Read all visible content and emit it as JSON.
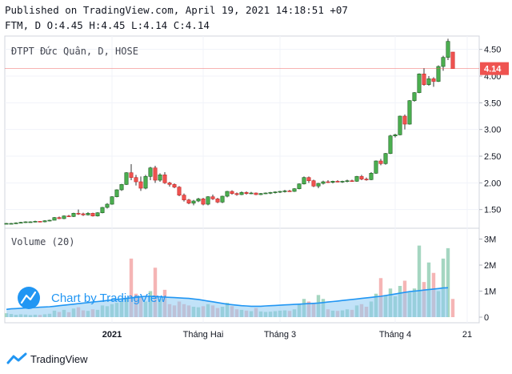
{
  "header": {
    "published": "Published on TradingView.com, April 19, 2021 14:18:51 +07",
    "ohlc": "FTM, D O:4.45 H:4.45 L:4.14 C:4.14"
  },
  "footer": {
    "brand": "TradingView"
  },
  "watermark": "Chart by TradingView",
  "colors": {
    "up": "#26a69a",
    "down": "#ef5350",
    "upFill": "#4caf50",
    "volUp": "#a5d6c1",
    "volDown": "#f5b5b5",
    "ma": "#2196f3",
    "maFill": "#8ecaf2",
    "lastPrice": "#ef5350"
  },
  "chart_data": {
    "type": "candlestick",
    "symbol_label": "ĐTPT Đức Quân, D, HOSE",
    "volume_label": "Volume (20)",
    "last_price": "4.14",
    "price_ticks": [
      "4.50",
      "4.00",
      "3.50",
      "3.00",
      "2.50",
      "2.00",
      "1.50"
    ],
    "price_tick_values": [
      4.5,
      4.0,
      3.5,
      3.0,
      2.5,
      2.0,
      1.5
    ],
    "price_range": [
      1.15,
      4.75
    ],
    "volume_ticks": [
      "3M",
      "2M",
      "1M",
      "0"
    ],
    "volume_tick_values": [
      3000000,
      2000000,
      1000000,
      0
    ],
    "volume_range": [
      0,
      3200000
    ],
    "x_labels": [
      {
        "label": "2021",
        "i": 22,
        "bold": true
      },
      {
        "label": "Tháng Hai",
        "i": 41,
        "bold": false
      },
      {
        "label": "Tháng 3",
        "i": 57,
        "bold": false
      },
      {
        "label": "Tháng 4",
        "i": 81,
        "bold": false
      },
      {
        "label": "21",
        "i": 96,
        "bold": false
      }
    ],
    "candles": [
      [
        1.24,
        1.25,
        1.23,
        1.24,
        150000
      ],
      [
        1.24,
        1.25,
        1.23,
        1.24,
        120000
      ],
      [
        1.24,
        1.26,
        1.23,
        1.25,
        90000
      ],
      [
        1.25,
        1.27,
        1.24,
        1.26,
        110000
      ],
      [
        1.26,
        1.28,
        1.25,
        1.27,
        100000
      ],
      [
        1.27,
        1.28,
        1.26,
        1.27,
        80000
      ],
      [
        1.27,
        1.29,
        1.26,
        1.28,
        95000
      ],
      [
        1.28,
        1.28,
        1.26,
        1.27,
        85000
      ],
      [
        1.27,
        1.3,
        1.26,
        1.29,
        110000
      ],
      [
        1.29,
        1.31,
        1.28,
        1.3,
        130000
      ],
      [
        1.3,
        1.36,
        1.3,
        1.35,
        250000
      ],
      [
        1.35,
        1.37,
        1.32,
        1.33,
        200000
      ],
      [
        1.33,
        1.39,
        1.32,
        1.38,
        280000
      ],
      [
        1.38,
        1.4,
        1.36,
        1.37,
        190000
      ],
      [
        1.37,
        1.44,
        1.36,
        1.43,
        330000
      ],
      [
        1.43,
        1.5,
        1.4,
        1.42,
        380000
      ],
      [
        1.42,
        1.44,
        1.38,
        1.4,
        260000
      ],
      [
        1.4,
        1.45,
        1.39,
        1.43,
        240000
      ],
      [
        1.43,
        1.44,
        1.37,
        1.38,
        300000
      ],
      [
        1.38,
        1.45,
        1.37,
        1.44,
        280000
      ],
      [
        1.44,
        1.55,
        1.43,
        1.54,
        450000
      ],
      [
        1.54,
        1.62,
        1.52,
        1.6,
        420000
      ],
      [
        1.6,
        1.75,
        1.59,
        1.74,
        500000
      ],
      [
        1.74,
        1.88,
        1.73,
        1.87,
        550000
      ],
      [
        1.87,
        1.98,
        1.85,
        1.97,
        600000
      ],
      [
        1.97,
        2.2,
        1.96,
        2.19,
        700000
      ],
      [
        2.19,
        2.35,
        2.05,
        2.1,
        2250000
      ],
      [
        2.1,
        2.15,
        1.95,
        2.02,
        900000
      ],
      [
        2.02,
        2.12,
        1.85,
        1.9,
        800000
      ],
      [
        1.9,
        2.15,
        1.88,
        2.12,
        600000
      ],
      [
        2.12,
        2.3,
        2.05,
        2.28,
        1000000
      ],
      [
        2.28,
        2.32,
        2.0,
        2.05,
        1900000
      ],
      [
        2.05,
        2.18,
        2.02,
        2.15,
        700000
      ],
      [
        2.15,
        2.2,
        1.98,
        2.0,
        1050000
      ],
      [
        2.0,
        2.02,
        1.93,
        1.97,
        500000
      ],
      [
        1.97,
        1.99,
        1.9,
        1.92,
        450000
      ],
      [
        1.92,
        1.94,
        1.75,
        1.77,
        600000
      ],
      [
        1.77,
        1.8,
        1.65,
        1.68,
        500000
      ],
      [
        1.68,
        1.7,
        1.6,
        1.62,
        450000
      ],
      [
        1.62,
        1.68,
        1.58,
        1.66,
        400000
      ],
      [
        1.66,
        1.72,
        1.64,
        1.7,
        380000
      ],
      [
        1.7,
        1.72,
        1.58,
        1.6,
        420000
      ],
      [
        1.6,
        1.75,
        1.58,
        1.74,
        500000
      ],
      [
        1.74,
        1.78,
        1.68,
        1.7,
        450000
      ],
      [
        1.7,
        1.72,
        1.62,
        1.64,
        350000
      ],
      [
        1.64,
        1.76,
        1.62,
        1.75,
        400000
      ],
      [
        1.75,
        1.85,
        1.73,
        1.84,
        550000
      ],
      [
        1.84,
        1.86,
        1.78,
        1.8,
        420000
      ],
      [
        1.8,
        1.82,
        1.76,
        1.78,
        300000
      ],
      [
        1.78,
        1.84,
        1.77,
        1.82,
        280000
      ],
      [
        1.82,
        1.84,
        1.78,
        1.8,
        250000
      ],
      [
        1.8,
        1.83,
        1.79,
        1.81,
        230000
      ],
      [
        1.81,
        1.82,
        1.77,
        1.78,
        350000
      ],
      [
        1.78,
        1.81,
        1.77,
        1.8,
        220000
      ],
      [
        1.8,
        1.82,
        1.79,
        1.81,
        200000
      ],
      [
        1.81,
        1.83,
        1.79,
        1.82,
        210000
      ],
      [
        1.82,
        1.84,
        1.8,
        1.83,
        230000
      ],
      [
        1.83,
        1.85,
        1.81,
        1.84,
        250000
      ],
      [
        1.84,
        1.87,
        1.82,
        1.85,
        260000
      ],
      [
        1.85,
        1.87,
        1.83,
        1.84,
        240000
      ],
      [
        1.84,
        1.9,
        1.83,
        1.89,
        300000
      ],
      [
        1.89,
        1.99,
        1.88,
        1.98,
        500000
      ],
      [
        1.98,
        2.12,
        1.97,
        2.1,
        700000
      ],
      [
        2.1,
        2.12,
        2.0,
        2.04,
        600000
      ],
      [
        2.04,
        2.06,
        1.92,
        1.94,
        550000
      ],
      [
        1.94,
        2.0,
        1.9,
        1.99,
        850000
      ],
      [
        1.99,
        2.04,
        1.97,
        2.02,
        700000
      ],
      [
        2.02,
        2.05,
        2.0,
        2.01,
        300000
      ],
      [
        2.01,
        2.04,
        1.99,
        2.03,
        250000
      ],
      [
        2.03,
        2.05,
        2.01,
        2.02,
        240000
      ],
      [
        2.02,
        2.04,
        2.0,
        2.03,
        260000
      ],
      [
        2.03,
        2.06,
        2.01,
        2.04,
        300000
      ],
      [
        2.04,
        2.06,
        2.02,
        2.03,
        280000
      ],
      [
        2.03,
        2.13,
        2.02,
        2.12,
        450000
      ],
      [
        2.12,
        2.15,
        2.05,
        2.07,
        500000
      ],
      [
        2.07,
        2.1,
        2.04,
        2.06,
        400000
      ],
      [
        2.06,
        2.2,
        2.05,
        2.18,
        600000
      ],
      [
        2.18,
        2.42,
        2.17,
        2.41,
        900000
      ],
      [
        2.41,
        2.45,
        2.33,
        2.36,
        1500000
      ],
      [
        2.36,
        2.56,
        2.34,
        2.55,
        850000
      ],
      [
        2.55,
        2.9,
        2.54,
        2.88,
        1100000
      ],
      [
        2.88,
        2.92,
        2.85,
        2.9,
        800000
      ],
      [
        2.9,
        3.26,
        2.89,
        3.25,
        1200000
      ],
      [
        3.25,
        3.28,
        3.0,
        3.1,
        1400000
      ],
      [
        3.1,
        3.55,
        3.09,
        3.54,
        950000
      ],
      [
        3.54,
        3.7,
        3.52,
        3.69,
        1100000
      ],
      [
        3.69,
        4.05,
        3.68,
        4.04,
        2750000
      ],
      [
        4.04,
        4.15,
        3.82,
        3.84,
        1350000
      ],
      [
        3.84,
        4.0,
        3.82,
        3.95,
        2100000
      ],
      [
        3.95,
        3.98,
        3.8,
        3.9,
        1700000
      ],
      [
        3.9,
        4.2,
        3.89,
        4.18,
        1000000
      ],
      [
        4.18,
        4.38,
        4.1,
        4.35,
        2250000
      ],
      [
        4.35,
        4.7,
        4.3,
        4.65,
        2650000
      ],
      [
        4.45,
        4.45,
        4.14,
        4.14,
        700000
      ]
    ],
    "candle_indices": [
      0,
      1,
      2,
      3,
      4,
      5,
      6,
      7,
      8,
      9,
      10,
      11,
      12,
      13,
      14,
      15,
      16,
      17,
      18,
      19,
      20,
      21,
      22,
      23,
      24,
      25,
      26,
      27,
      28,
      29,
      30,
      31,
      32,
      33,
      34,
      35,
      36,
      37,
      38,
      39,
      40,
      41,
      42,
      43,
      44,
      45,
      46,
      47,
      48,
      49,
      50,
      51,
      52,
      53,
      54,
      55,
      56,
      57,
      58,
      59,
      60,
      61,
      62,
      63,
      64,
      65,
      66,
      67,
      68,
      69,
      70,
      71,
      72,
      73,
      74,
      75,
      76,
      77,
      78,
      79,
      80,
      81,
      82,
      83,
      84,
      85,
      86,
      87,
      88,
      89,
      90,
      91,
      92
    ],
    "volume_ma": [
      300000,
      320000,
      330000,
      340000,
      350000,
      360000,
      370000,
      380000,
      390000,
      400000,
      420000,
      440000,
      460000,
      480000,
      500000,
      520000,
      540000,
      560000,
      580000,
      600000,
      620000,
      640000,
      660000,
      680000,
      700000,
      720000,
      740000,
      760000,
      780000,
      800000,
      800000,
      790000,
      780000,
      770000,
      760000,
      750000,
      740000,
      730000,
      720000,
      700000,
      680000,
      650000,
      620000,
      590000,
      560000,
      530000,
      500000,
      480000,
      460000,
      440000,
      430000,
      420000,
      420000,
      420000,
      430000,
      440000,
      450000,
      460000,
      470000,
      480000,
      490000,
      500000,
      510000,
      520000,
      530000,
      540000,
      560000,
      580000,
      600000,
      620000,
      640000,
      660000,
      680000,
      700000,
      720000,
      740000,
      760000,
      780000,
      800000,
      830000,
      860000,
      890000,
      920000,
      950000,
      980000,
      1000000,
      1020000,
      1040000,
      1060000,
      1080000,
      1100000,
      1120000,
      1130000
    ]
  }
}
